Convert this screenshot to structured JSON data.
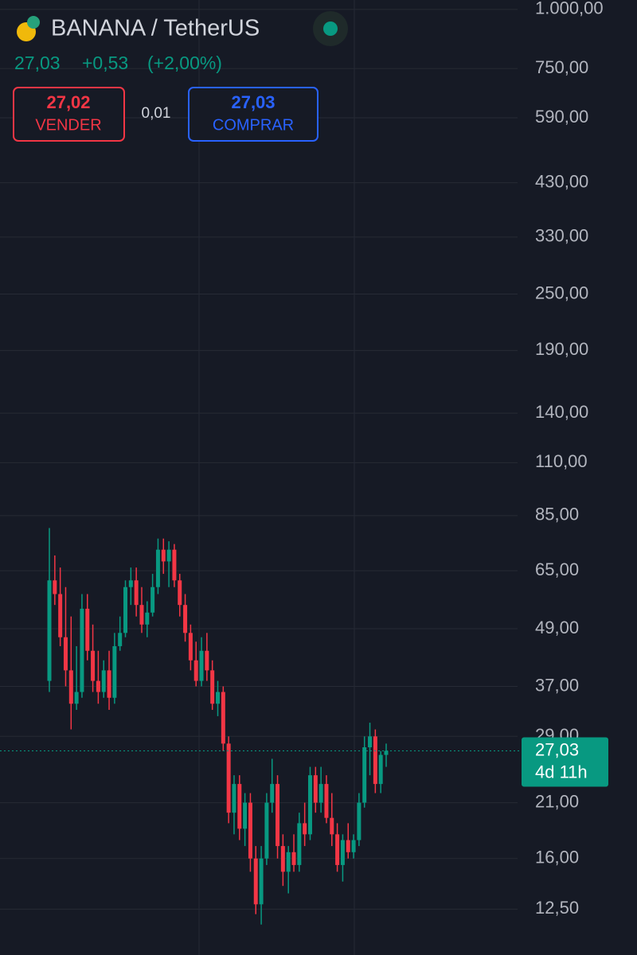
{
  "header": {
    "title": "BANANA / TetherUS",
    "price": "27,03",
    "change": "+0,53",
    "change_pct": "(+2,00%)",
    "sell_price": "27,02",
    "sell_label": "VENDER",
    "spread": "0,01",
    "buy_price": "27,03",
    "buy_label": "COMPRAR"
  },
  "chart_data": {
    "type": "candlestick",
    "log_scale": true,
    "grid": true,
    "up_color": "#089981",
    "down_color": "#f23645",
    "ylim": [
      10,
      1047
    ],
    "yticks": [
      {
        "value": 1000,
        "label": "1.000,00"
      },
      {
        "value": 750,
        "label": "750,00"
      },
      {
        "value": 590,
        "label": "590,00"
      },
      {
        "value": 430,
        "label": "430,00"
      },
      {
        "value": 330,
        "label": "330,00"
      },
      {
        "value": 250,
        "label": "250,00"
      },
      {
        "value": 190,
        "label": "190,00"
      },
      {
        "value": 140,
        "label": "140,00"
      },
      {
        "value": 110,
        "label": "110,00"
      },
      {
        "value": 85,
        "label": "85,00"
      },
      {
        "value": 65,
        "label": "65,00"
      },
      {
        "value": 49,
        "label": "49,00"
      },
      {
        "value": 37,
        "label": "37,00"
      },
      {
        "value": 29,
        "label": "29,00"
      },
      {
        "value": 21,
        "label": "21,00"
      },
      {
        "value": 16,
        "label": "16,00"
      },
      {
        "value": 12.5,
        "label": "12,50"
      }
    ],
    "last_price": {
      "value": 27.03,
      "label": "27,03"
    },
    "countdown": "4d 11h",
    "open": [
      38,
      62,
      58,
      47,
      40,
      34,
      36,
      54,
      44,
      38,
      36,
      40,
      35,
      45,
      48,
      60,
      62,
      55,
      50,
      53,
      60,
      72,
      68,
      72,
      62,
      55,
      48,
      42,
      38,
      44,
      40,
      34,
      36,
      28,
      20,
      23,
      18.5,
      21,
      16,
      12.8,
      16,
      21,
      23,
      17,
      15,
      16.5,
      15.5,
      19,
      18,
      24,
      21,
      23,
      19.5,
      18,
      15.5,
      17.5,
      16.5,
      17.5,
      21,
      27.5,
      29,
      23,
      26.5
    ],
    "high": [
      80,
      70,
      66,
      60,
      52,
      45,
      58,
      58,
      50,
      44,
      42,
      44,
      48,
      52,
      62,
      66,
      66,
      60,
      56,
      64,
      76,
      76,
      75,
      74,
      64,
      58,
      50,
      46,
      47,
      48,
      42,
      38,
      37,
      29,
      24,
      24,
      22,
      22,
      17,
      17,
      22,
      26,
      24,
      18,
      17,
      18,
      20,
      21,
      25,
      25,
      25,
      24,
      22,
      19,
      18,
      19,
      18,
      22,
      29,
      31,
      30,
      27,
      28
    ],
    "low": [
      36,
      55,
      45,
      37,
      30,
      33,
      35,
      42,
      36,
      34,
      35,
      33,
      34,
      44,
      47,
      55,
      52,
      48,
      47,
      52,
      58,
      64,
      60,
      60,
      52,
      46,
      40,
      37,
      37,
      38,
      33,
      32,
      27,
      19,
      18,
      17.5,
      17,
      15,
      12.2,
      11.6,
      15.5,
      20,
      16,
      14,
      13.5,
      15,
      15,
      17,
      17.5,
      20,
      20,
      19,
      17,
      15,
      14.3,
      16,
      16,
      17,
      20.5,
      24,
      22,
      22,
      25
    ],
    "close": [
      62,
      58,
      47,
      40,
      34,
      36,
      54,
      44,
      38,
      36,
      40,
      35,
      45,
      48,
      60,
      62,
      55,
      50,
      53,
      60,
      72,
      68,
      72,
      62,
      55,
      48,
      42,
      38,
      44,
      40,
      34,
      36,
      28,
      20,
      23,
      18.5,
      21,
      16,
      12.8,
      16,
      21,
      23,
      17,
      15,
      16.5,
      15.5,
      19,
      18,
      24,
      21,
      23,
      19.5,
      18,
      15.5,
      17.5,
      16.5,
      17.5,
      21,
      27.5,
      29,
      23,
      26.5,
      27.03
    ]
  }
}
